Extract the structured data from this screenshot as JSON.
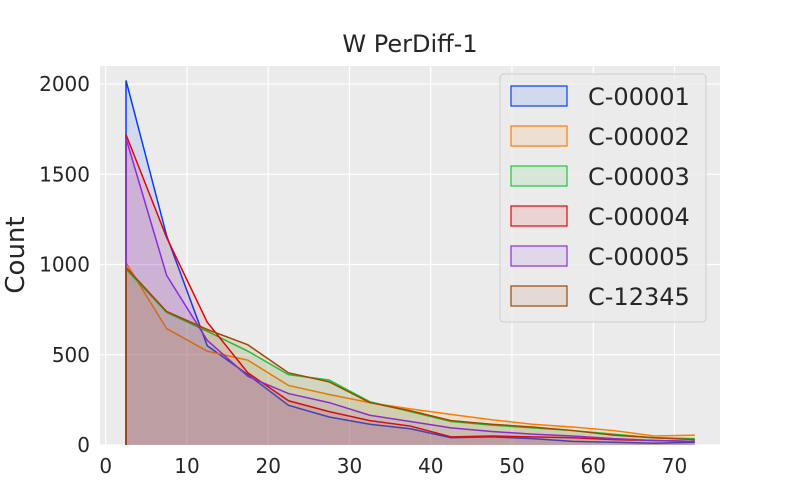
{
  "chart_data": {
    "type": "area",
    "title": "W PerDiff-1",
    "xlabel": "",
    "ylabel": "Count",
    "xlim": [
      -0.7,
      75.6
    ],
    "ylim": [
      0,
      2100
    ],
    "xticks": [
      0,
      10,
      20,
      30,
      40,
      50,
      60,
      70
    ],
    "yticks": [
      0,
      500,
      1000,
      1500,
      2000
    ],
    "grid": true,
    "legend_position": "top-right",
    "x": [
      2.5,
      7.5,
      12.5,
      17.5,
      22.5,
      27.5,
      32.5,
      37.5,
      42.5,
      47.5,
      52.5,
      57.5,
      62.5,
      67.5,
      72.5
    ],
    "series": [
      {
        "name": "C-00001",
        "color": "#023eff",
        "values": [
          2020,
          1160,
          550,
          390,
          220,
          155,
          115,
          90,
          40,
          45,
          35,
          20,
          15,
          10,
          15
        ]
      },
      {
        "name": "C-00002",
        "color": "#ff7c00",
        "values": [
          1010,
          645,
          520,
          470,
          330,
          280,
          235,
          200,
          170,
          140,
          115,
          100,
          80,
          50,
          55
        ]
      },
      {
        "name": "C-00003",
        "color": "#1ac938",
        "values": [
          975,
          735,
          630,
          520,
          390,
          360,
          240,
          185,
          130,
          110,
          95,
          80,
          60,
          40,
          35
        ]
      },
      {
        "name": "C-00004",
        "color": "#e8000b",
        "values": [
          1720,
          1150,
          680,
          400,
          245,
          185,
          135,
          105,
          45,
          50,
          45,
          40,
          30,
          25,
          20
        ]
      },
      {
        "name": "C-00005",
        "color": "#8b2be2",
        "values": [
          1700,
          940,
          580,
          380,
          285,
          235,
          165,
          130,
          95,
          75,
          60,
          50,
          35,
          25,
          20
        ]
      },
      {
        "name": "C-12345",
        "color": "#9f4800",
        "values": [
          985,
          740,
          640,
          555,
          400,
          350,
          235,
          190,
          135,
          115,
          100,
          80,
          55,
          40,
          30
        ]
      }
    ]
  }
}
